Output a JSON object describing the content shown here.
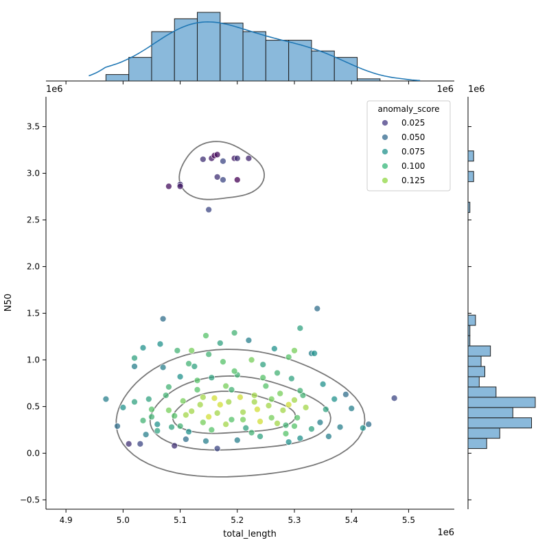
{
  "chart_data": {
    "type": "scatter",
    "title": "",
    "xlabel": "total_length",
    "ylabel": "N50",
    "x_scale_label": "1e6",
    "y_scale_label": "1e6",
    "xlim": [
      4.865,
      5.58
    ],
    "ylim": [
      -0.6,
      3.82
    ],
    "x_ticks": [
      4.9,
      5.0,
      5.1,
      5.2,
      5.3,
      5.4,
      5.5
    ],
    "x_tick_labels": [
      "4.9",
      "5.0",
      "5.1",
      "5.2",
      "5.3",
      "5.4",
      "5.5"
    ],
    "y_ticks": [
      -0.5,
      0.0,
      0.5,
      1.0,
      1.5,
      2.0,
      2.5,
      3.0,
      3.5
    ],
    "y_tick_labels": [
      "−0.5",
      "0.0",
      "0.5",
      "1.0",
      "1.5",
      "2.0",
      "2.5",
      "3.0",
      "3.5"
    ],
    "legend": {
      "title": "anomaly_score",
      "position": "top-right",
      "entries": [
        {
          "label": "0.025",
          "color": "#443983"
        },
        {
          "label": "0.050",
          "color": "#31688e"
        },
        {
          "label": "0.075",
          "color": "#21918c"
        },
        {
          "label": "0.100",
          "color": "#35b779"
        },
        {
          "label": "0.125",
          "color": "#90d743"
        }
      ]
    },
    "colormap": "viridis",
    "color_range": [
      0.0,
      0.14
    ],
    "marginal_x_hist": {
      "bin_edges": [
        4.97,
        5.01,
        5.05,
        5.09,
        5.13,
        5.17,
        5.21,
        5.25,
        5.29,
        5.33,
        5.37,
        5.41,
        5.45,
        5.49
      ],
      "counts": [
        3,
        11,
        23,
        29,
        32,
        27,
        23,
        19,
        19,
        14,
        11,
        1,
        0
      ]
    },
    "marginal_y_hist": {
      "bin_edges": [
        0.05,
        0.16,
        0.27,
        0.38,
        0.49,
        0.6,
        0.71,
        0.82,
        0.93,
        1.04,
        1.15,
        1.26,
        1.37,
        1.48,
        1.59,
        1.7,
        1.81,
        1.92,
        2.03,
        2.14,
        2.25,
        2.36,
        2.47,
        2.58,
        2.69,
        2.8,
        2.91,
        3.02,
        3.13,
        3.24
      ],
      "counts": [
        10,
        17,
        34,
        24,
        36,
        15,
        6,
        9,
        7,
        12,
        1,
        1,
        4,
        0,
        0,
        0,
        0,
        0,
        0,
        0,
        0,
        0,
        0,
        1,
        0,
        0,
        3,
        0,
        3,
        0
      ]
    },
    "points": [
      [
        5.155,
        3.16,
        0.01
      ],
      [
        5.16,
        3.19,
        0.0
      ],
      [
        5.165,
        3.2,
        0.005
      ],
      [
        5.14,
        3.15,
        0.02
      ],
      [
        5.175,
        3.13,
        0.03
      ],
      [
        5.195,
        3.16,
        0.01
      ],
      [
        5.2,
        3.16,
        0.02
      ],
      [
        5.22,
        3.16,
        0.015
      ],
      [
        5.1,
        2.88,
        0.02
      ],
      [
        5.1,
        2.86,
        0.01
      ],
      [
        5.08,
        2.86,
        0.005
      ],
      [
        5.165,
        2.96,
        0.02
      ],
      [
        5.175,
        2.93,
        0.03
      ],
      [
        5.2,
        2.93,
        0.0
      ],
      [
        5.15,
        2.61,
        0.03
      ],
      [
        4.97,
        0.58,
        0.06
      ],
      [
        4.99,
        0.29,
        0.05
      ],
      [
        5.0,
        0.49,
        0.07
      ],
      [
        5.01,
        0.1,
        0.02
      ],
      [
        5.02,
        0.93,
        0.06
      ],
      [
        5.02,
        1.02,
        0.08
      ],
      [
        5.03,
        0.1,
        0.03
      ],
      [
        5.035,
        1.13,
        0.07
      ],
      [
        5.035,
        0.35,
        0.09
      ],
      [
        5.045,
        0.58,
        0.08
      ],
      [
        5.05,
        0.47,
        0.1
      ],
      [
        5.06,
        0.31,
        0.07
      ],
      [
        5.065,
        1.17,
        0.07
      ],
      [
        5.07,
        1.44,
        0.05
      ],
      [
        5.07,
        0.92,
        0.06
      ],
      [
        5.075,
        0.62,
        0.09
      ],
      [
        5.08,
        0.46,
        0.11
      ],
      [
        5.085,
        0.28,
        0.08
      ],
      [
        5.09,
        0.08,
        0.02
      ],
      [
        5.095,
        1.1,
        0.09
      ],
      [
        5.1,
        0.82,
        0.07
      ],
      [
        5.105,
        0.56,
        0.11
      ],
      [
        5.11,
        0.41,
        0.12
      ],
      [
        5.115,
        0.23,
        0.07
      ],
      [
        5.12,
        1.1,
        0.11
      ],
      [
        5.125,
        0.93,
        0.08
      ],
      [
        5.13,
        0.68,
        0.1
      ],
      [
        5.135,
        0.52,
        0.12
      ],
      [
        5.14,
        0.33,
        0.11
      ],
      [
        5.145,
        0.13,
        0.06
      ],
      [
        5.145,
        1.26,
        0.1
      ],
      [
        5.15,
        1.06,
        0.09
      ],
      [
        5.155,
        0.81,
        0.08
      ],
      [
        5.16,
        0.59,
        0.13
      ],
      [
        5.165,
        0.43,
        0.12
      ],
      [
        5.165,
        0.05,
        0.03
      ],
      [
        5.17,
        1.18,
        0.08
      ],
      [
        5.175,
        0.98,
        0.1
      ],
      [
        5.18,
        0.72,
        0.11
      ],
      [
        5.185,
        0.55,
        0.12
      ],
      [
        5.19,
        0.36,
        0.1
      ],
      [
        5.195,
        1.29,
        0.09
      ],
      [
        5.2,
        0.84,
        0.09
      ],
      [
        5.205,
        0.6,
        0.13
      ],
      [
        5.21,
        0.44,
        0.12
      ],
      [
        5.215,
        0.27,
        0.08
      ],
      [
        5.22,
        1.21,
        0.06
      ],
      [
        5.225,
        1.0,
        0.11
      ],
      [
        5.23,
        0.62,
        0.12
      ],
      [
        5.235,
        0.47,
        0.13
      ],
      [
        5.24,
        0.18,
        0.08
      ],
      [
        5.245,
        0.95,
        0.08
      ],
      [
        5.25,
        0.72,
        0.1
      ],
      [
        5.255,
        0.51,
        0.12
      ],
      [
        5.26,
        0.38,
        0.11
      ],
      [
        5.265,
        1.12,
        0.07
      ],
      [
        5.27,
        0.86,
        0.09
      ],
      [
        5.275,
        0.64,
        0.11
      ],
      [
        5.28,
        0.46,
        0.12
      ],
      [
        5.285,
        0.3,
        0.09
      ],
      [
        5.29,
        1.03,
        0.1
      ],
      [
        5.295,
        0.8,
        0.08
      ],
      [
        5.3,
        0.57,
        0.12
      ],
      [
        5.3,
        1.1,
        0.11
      ],
      [
        5.305,
        0.38,
        0.1
      ],
      [
        5.31,
        1.34,
        0.08
      ],
      [
        5.31,
        0.16,
        0.07
      ],
      [
        5.315,
        0.62,
        0.09
      ],
      [
        5.32,
        0.49,
        0.12
      ],
      [
        5.33,
        1.07,
        0.06
      ],
      [
        5.335,
        1.07,
        0.07
      ],
      [
        5.34,
        1.55,
        0.05
      ],
      [
        5.345,
        0.33,
        0.06
      ],
      [
        5.35,
        0.74,
        0.07
      ],
      [
        5.355,
        0.47,
        0.08
      ],
      [
        5.36,
        0.18,
        0.06
      ],
      [
        5.37,
        0.58,
        0.07
      ],
      [
        5.38,
        0.28,
        0.06
      ],
      [
        5.39,
        0.63,
        0.05
      ],
      [
        5.4,
        0.48,
        0.06
      ],
      [
        5.42,
        0.27,
        0.07
      ],
      [
        5.43,
        0.31,
        0.05
      ],
      [
        5.475,
        0.59,
        0.03
      ],
      [
        5.06,
        0.24,
        0.08
      ],
      [
        5.09,
        0.4,
        0.1
      ],
      [
        5.12,
        0.45,
        0.12
      ],
      [
        5.15,
        0.39,
        0.13
      ],
      [
        5.18,
        0.31,
        0.12
      ],
      [
        5.21,
        0.36,
        0.11
      ],
      [
        5.24,
        0.34,
        0.13
      ],
      [
        5.27,
        0.32,
        0.12
      ],
      [
        5.3,
        0.29,
        0.1
      ],
      [
        5.33,
        0.26,
        0.08
      ],
      [
        5.05,
        0.39,
        0.09
      ],
      [
        5.1,
        0.29,
        0.09
      ],
      [
        5.14,
        0.6,
        0.12
      ],
      [
        5.17,
        0.52,
        0.13
      ],
      [
        5.23,
        0.55,
        0.12
      ],
      [
        5.26,
        0.58,
        0.11
      ],
      [
        5.29,
        0.52,
        0.13
      ],
      [
        5.02,
        0.55,
        0.08
      ],
      [
        5.04,
        0.2,
        0.06
      ],
      [
        5.11,
        0.15,
        0.05
      ],
      [
        5.2,
        0.14,
        0.06
      ],
      [
        5.29,
        0.12,
        0.07
      ],
      [
        5.08,
        0.71,
        0.09
      ],
      [
        5.13,
        0.78,
        0.1
      ],
      [
        5.19,
        0.68,
        0.09
      ],
      [
        5.245,
        0.81,
        0.1
      ],
      [
        5.31,
        0.67,
        0.09
      ],
      [
        5.155,
        0.25,
        0.1
      ],
      [
        5.225,
        0.22,
        0.09
      ],
      [
        5.285,
        0.21,
        0.1
      ],
      [
        5.115,
        0.96,
        0.09
      ],
      [
        5.195,
        0.88,
        0.1
      ]
    ],
    "contour_levels": [
      {
        "center": [
          5.2,
          0.42
        ],
        "rx": 0.21,
        "ry": 0.72
      },
      {
        "center": [
          5.2,
          0.42
        ],
        "rx": 0.15,
        "ry": 0.42
      },
      {
        "center": [
          5.19,
          0.43
        ],
        "rx": 0.1,
        "ry": 0.24
      }
    ],
    "upper_contour": {
      "center": [
        5.17,
        3.02
      ],
      "rx": 0.07,
      "ry": 0.33
    }
  }
}
